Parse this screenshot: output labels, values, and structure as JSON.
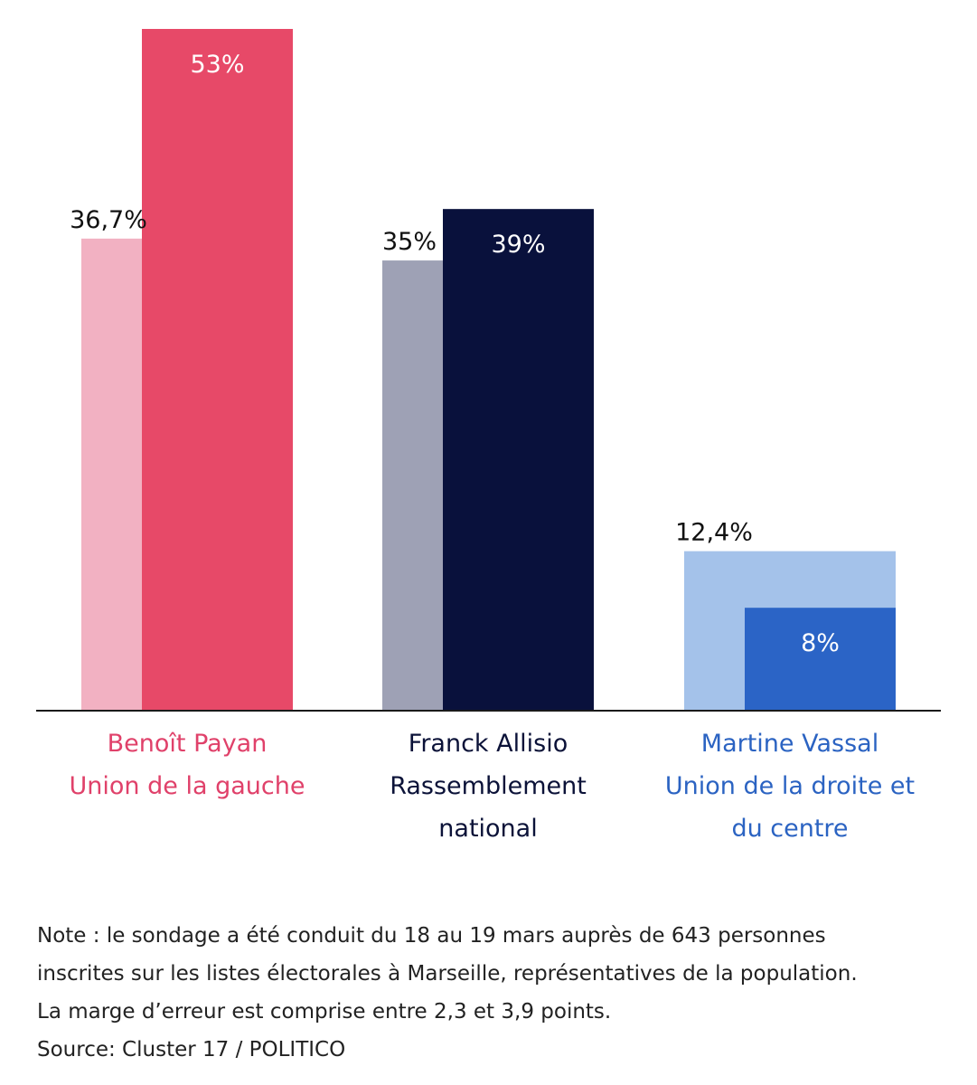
{
  "chart_data": {
    "type": "bar",
    "categories": [
      {
        "lines": [
          "Benoît Payan",
          "Union de la gauche"
        ],
        "color": "#e0416a"
      },
      {
        "lines": [
          "Franck Allisio",
          "Rassemblement",
          "national"
        ],
        "color": "#0b1238"
      },
      {
        "lines": [
          "Martine Vassal",
          "Union de la droite et",
          "du centre"
        ],
        "color": "#2b63c2"
      }
    ],
    "series": [
      {
        "values": [
          36.7,
          35,
          12.4
        ],
        "labels": [
          "36,7%",
          "35%",
          "12,4%"
        ],
        "colors": [
          "#f2b1c2",
          "#9ea1b5",
          "#a4c2ea"
        ]
      },
      {
        "values": [
          53,
          39,
          8
        ],
        "labels": [
          "53%",
          "39%",
          "8%"
        ],
        "colors": [
          "#e74968",
          "#09113c",
          "#2b64c6"
        ]
      }
    ],
    "ylim": [
      0,
      53
    ]
  },
  "note": {
    "lines": [
      "Note : le sondage a été conduit du 18 au 19 mars auprès de 643 personnes",
      "inscrites sur les listes électorales à Marseille, représentatives de la population.",
      "La marge d’erreur est comprise entre 2,3 et 3,9 points."
    ],
    "source": "Source: Cluster 17 / POLITICO"
  }
}
